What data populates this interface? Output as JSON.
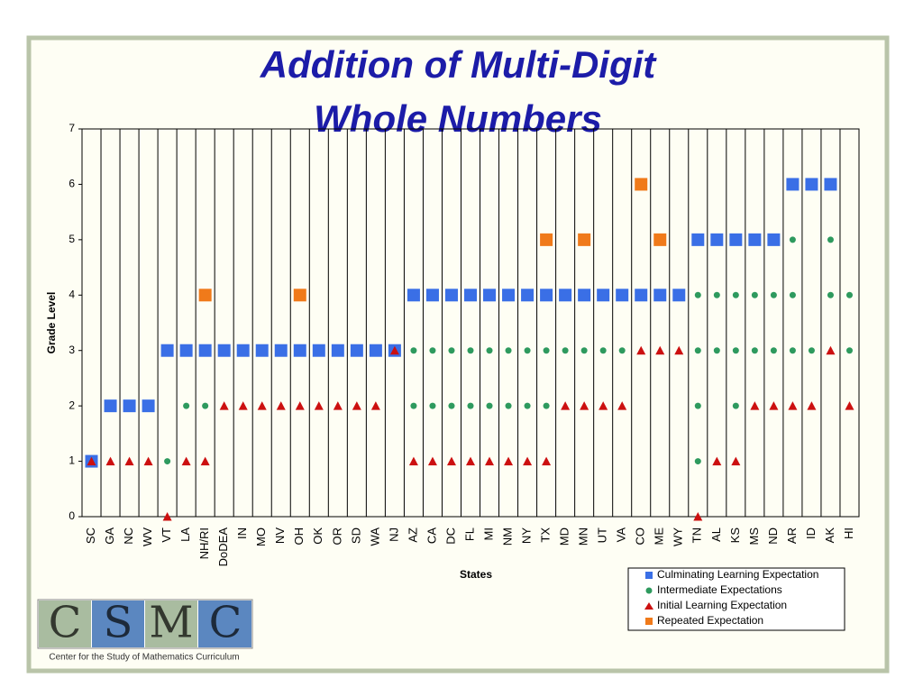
{
  "chart_data": {
    "type": "category-scatter",
    "title": [
      "Addition of Multi-Digit",
      "Whole Numbers"
    ],
    "x_label": "States",
    "y_label": "Grade Level",
    "categories": [
      "SC",
      "GA",
      "NC",
      "WV",
      "VT",
      "LA",
      "NH/RI",
      "DoDEA",
      "IN",
      "MO",
      "NV",
      "OH",
      "OK",
      "OR",
      "SD",
      "WA",
      "NJ",
      "AZ",
      "CA",
      "DC",
      "FL",
      "MI",
      "NM",
      "NY",
      "TX",
      "MD",
      "MN",
      "UT",
      "VA",
      "CO",
      "ME",
      "WY",
      "TN",
      "AL",
      "KS",
      "MS",
      "ND",
      "AR",
      "ID",
      "AK",
      "HI"
    ],
    "ylim": [
      0,
      7
    ],
    "yticks": [
      0,
      1,
      2,
      3,
      4,
      5,
      6,
      7
    ],
    "series": [
      {
        "name": "Culminating Learning Expectation",
        "color": "#3a6fe6",
        "marker": "square",
        "values": [
          [
            1
          ],
          [
            2
          ],
          [
            2
          ],
          [
            2
          ],
          [
            3
          ],
          [
            3
          ],
          [
            3
          ],
          [
            3
          ],
          [
            3
          ],
          [
            3
          ],
          [
            3
          ],
          [
            3
          ],
          [
            3
          ],
          [
            3
          ],
          [
            3
          ],
          [
            3
          ],
          [
            3
          ],
          [
            4
          ],
          [
            4
          ],
          [
            4
          ],
          [
            4
          ],
          [
            4
          ],
          [
            4
          ],
          [
            4
          ],
          [
            4
          ],
          [
            4
          ],
          [
            4
          ],
          [
            4
          ],
          [
            4
          ],
          [
            4
          ],
          [
            4
          ],
          [
            4
          ],
          [
            5
          ],
          [
            5
          ],
          [
            5
          ],
          [
            5
          ],
          [
            5
          ],
          [
            6
          ],
          [
            6
          ],
          [
            6
          ],
          null
        ]
      },
      {
        "name": "Intermediate Expectations",
        "color": "#2e9a5e",
        "marker": "circle",
        "values": [
          null,
          null,
          null,
          null,
          [
            1
          ],
          [
            2
          ],
          [
            2
          ],
          null,
          null,
          null,
          null,
          null,
          null,
          null,
          null,
          null,
          null,
          [
            3,
            2
          ],
          [
            3,
            2
          ],
          [
            3,
            2
          ],
          [
            3,
            2
          ],
          [
            3,
            2
          ],
          [
            3,
            2
          ],
          [
            3,
            2
          ],
          [
            3,
            2
          ],
          [
            3
          ],
          [
            3
          ],
          [
            3
          ],
          [
            3
          ],
          null,
          null,
          null,
          [
            4,
            3,
            2,
            1
          ],
          [
            4,
            3
          ],
          [
            4,
            3,
            2
          ],
          [
            4,
            3
          ],
          [
            4,
            3
          ],
          [
            5,
            4,
            3
          ],
          [
            3
          ],
          [
            5,
            4
          ],
          [
            4,
            3
          ]
        ]
      },
      {
        "name": "Initial Learning Expectation",
        "color": "#cc1010",
        "marker": "triangle",
        "values": [
          [
            1
          ],
          [
            1
          ],
          [
            1
          ],
          [
            1
          ],
          [
            0
          ],
          [
            1
          ],
          [
            1
          ],
          [
            2
          ],
          [
            2
          ],
          [
            2
          ],
          [
            2
          ],
          [
            2
          ],
          [
            2
          ],
          [
            2
          ],
          [
            2
          ],
          [
            2
          ],
          [
            3
          ],
          [
            1
          ],
          [
            1
          ],
          [
            1
          ],
          [
            1
          ],
          [
            1
          ],
          [
            1
          ],
          [
            1
          ],
          [
            1
          ],
          [
            2
          ],
          [
            2
          ],
          [
            2
          ],
          [
            2
          ],
          [
            3
          ],
          [
            3
          ],
          [
            3
          ],
          [
            0
          ],
          [
            1
          ],
          [
            1
          ],
          [
            2
          ],
          [
            2
          ],
          [
            2
          ],
          [
            2
          ],
          [
            3
          ],
          [
            2
          ]
        ]
      },
      {
        "name": "Repeated Expectation",
        "color": "#f07a1a",
        "marker": "square",
        "values": [
          null,
          null,
          null,
          null,
          null,
          null,
          [
            4
          ],
          null,
          null,
          null,
          null,
          [
            4
          ],
          null,
          null,
          null,
          null,
          null,
          null,
          null,
          null,
          null,
          null,
          null,
          null,
          [
            5
          ],
          null,
          [
            5
          ],
          null,
          null,
          [
            6
          ],
          [
            5
          ],
          null,
          null,
          null,
          null,
          null,
          null,
          null,
          null,
          null,
          null
        ]
      }
    ],
    "draw_order": [
      0,
      3,
      1,
      2
    ]
  },
  "logo": {
    "letters": [
      "C",
      "S",
      "M",
      "C"
    ],
    "caption": "Center for the Study of Mathematics Curriculum"
  }
}
